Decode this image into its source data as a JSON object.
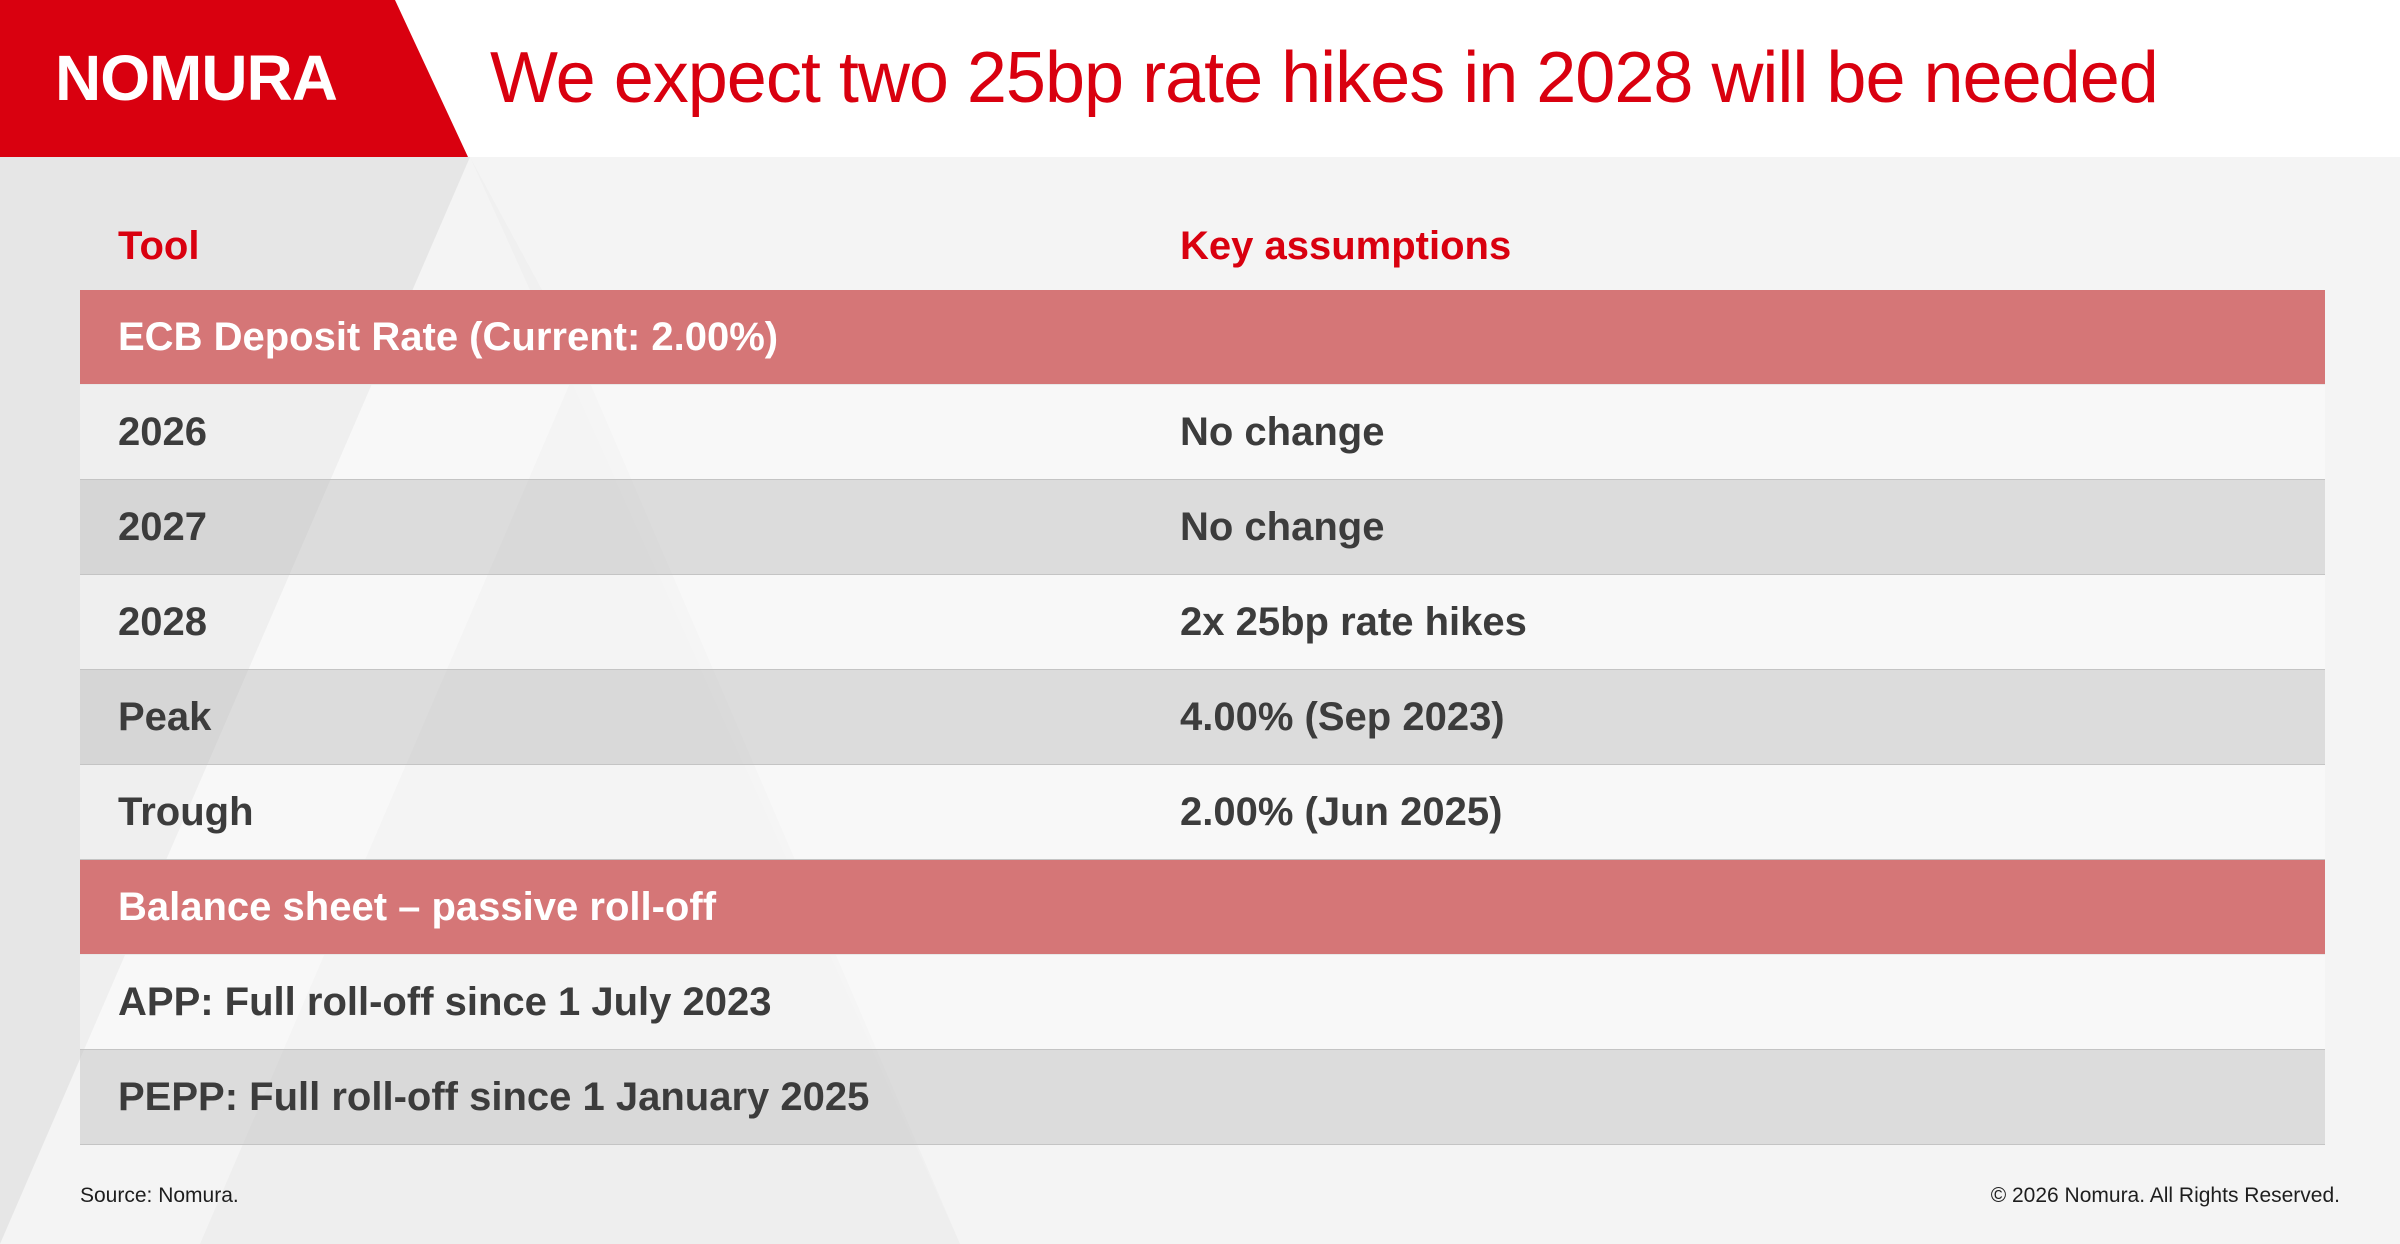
{
  "header": {
    "logo": "NOMURA",
    "title": "We expect two 25bp rate hikes in 2028 will be needed"
  },
  "colors": {
    "brand_red": "#d9000f",
    "section_band": "#d57677",
    "row_text": "#3c3c3c"
  },
  "table": {
    "columns": [
      "Tool",
      "Key assumptions"
    ],
    "rows": [
      {
        "type": "section",
        "tool": "ECB Deposit Rate (Current: 2.00%)",
        "assumption": ""
      },
      {
        "type": "light",
        "tool": "2026",
        "assumption": "No change"
      },
      {
        "type": "dark",
        "tool": "2027",
        "assumption": "No change"
      },
      {
        "type": "light",
        "tool": "2028",
        "assumption": "2x 25bp rate hikes"
      },
      {
        "type": "dark",
        "tool": "Peak",
        "assumption": "4.00% (Sep 2023)"
      },
      {
        "type": "light",
        "tool": "Trough",
        "assumption": "2.00% (Jun 2025)"
      },
      {
        "type": "section",
        "tool": "Balance sheet – passive roll-off",
        "assumption": ""
      },
      {
        "type": "light",
        "tool": "APP: Full roll-off since 1 July 2023",
        "assumption": ""
      },
      {
        "type": "dark",
        "tool": "PEPP: Full roll-off since 1 January 2025",
        "assumption": ""
      }
    ]
  },
  "footer": {
    "source": "Source: Nomura.",
    "copyright": "© 2026 Nomura. All Rights Reserved."
  }
}
